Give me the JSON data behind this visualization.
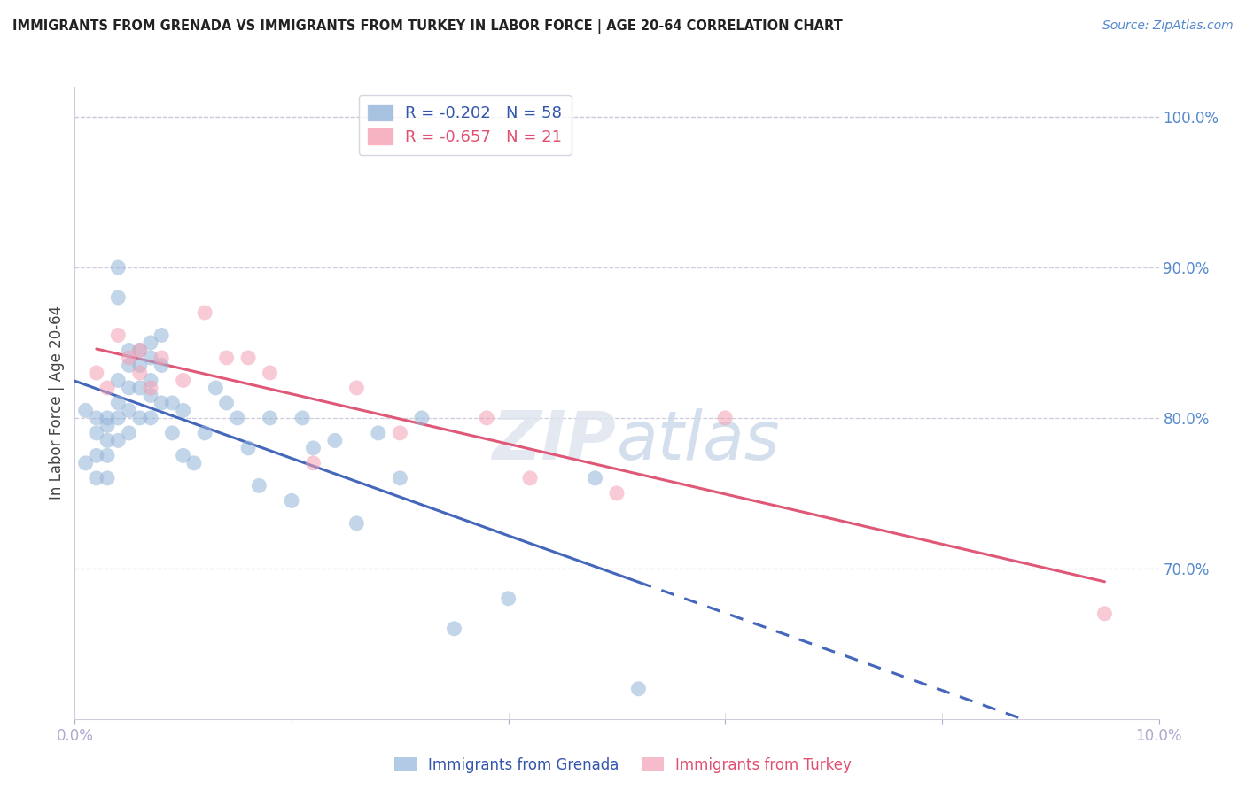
{
  "title": "IMMIGRANTS FROM GRENADA VS IMMIGRANTS FROM TURKEY IN LABOR FORCE | AGE 20-64 CORRELATION CHART",
  "source": "Source: ZipAtlas.com",
  "ylabel": "In Labor Force | Age 20-64",
  "x_min": 0.0,
  "x_max": 0.1,
  "y_min": 0.6,
  "y_max": 1.02,
  "x_ticks": [
    0.0,
    0.02,
    0.04,
    0.06,
    0.08,
    0.1
  ],
  "y_ticks": [
    0.7,
    0.8,
    0.9,
    1.0
  ],
  "grenada_R": "-0.202",
  "grenada_N": "58",
  "turkey_R": "-0.657",
  "turkey_N": "21",
  "grenada_color": "#92B4D8",
  "turkey_color": "#F4A0B5",
  "grenada_line_color": "#4466BB",
  "turkey_line_color": "#E05878",
  "grenada_x": [
    0.001,
    0.001,
    0.002,
    0.002,
    0.002,
    0.002,
    0.003,
    0.003,
    0.003,
    0.003,
    0.003,
    0.004,
    0.004,
    0.004,
    0.004,
    0.004,
    0.004,
    0.005,
    0.005,
    0.005,
    0.005,
    0.005,
    0.006,
    0.006,
    0.006,
    0.006,
    0.007,
    0.007,
    0.007,
    0.007,
    0.007,
    0.008,
    0.008,
    0.008,
    0.009,
    0.009,
    0.01,
    0.01,
    0.011,
    0.012,
    0.013,
    0.014,
    0.015,
    0.016,
    0.017,
    0.018,
    0.02,
    0.021,
    0.022,
    0.024,
    0.026,
    0.028,
    0.03,
    0.032,
    0.035,
    0.04,
    0.048,
    0.052
  ],
  "grenada_y": [
    0.805,
    0.77,
    0.8,
    0.79,
    0.775,
    0.76,
    0.8,
    0.795,
    0.785,
    0.775,
    0.76,
    0.9,
    0.88,
    0.825,
    0.81,
    0.8,
    0.785,
    0.845,
    0.835,
    0.82,
    0.805,
    0.79,
    0.845,
    0.835,
    0.82,
    0.8,
    0.85,
    0.84,
    0.825,
    0.815,
    0.8,
    0.855,
    0.835,
    0.81,
    0.81,
    0.79,
    0.805,
    0.775,
    0.77,
    0.79,
    0.82,
    0.81,
    0.8,
    0.78,
    0.755,
    0.8,
    0.745,
    0.8,
    0.78,
    0.785,
    0.73,
    0.79,
    0.76,
    0.8,
    0.66,
    0.68,
    0.76,
    0.62
  ],
  "turkey_x": [
    0.002,
    0.003,
    0.004,
    0.005,
    0.006,
    0.006,
    0.007,
    0.008,
    0.01,
    0.012,
    0.014,
    0.016,
    0.018,
    0.022,
    0.026,
    0.03,
    0.038,
    0.042,
    0.05,
    0.06,
    0.095
  ],
  "turkey_y": [
    0.83,
    0.82,
    0.855,
    0.84,
    0.845,
    0.83,
    0.82,
    0.84,
    0.825,
    0.87,
    0.84,
    0.84,
    0.83,
    0.77,
    0.82,
    0.79,
    0.8,
    0.76,
    0.75,
    0.8,
    0.67
  ],
  "grenada_line_x_solid_end": 0.052,
  "turkey_line_x_start": 0.002,
  "turkey_line_x_end": 0.095,
  "grenada_line_intercept": 0.815,
  "grenada_line_slope": -1.7,
  "turkey_line_intercept": 0.85,
  "turkey_line_slope": -1.9
}
